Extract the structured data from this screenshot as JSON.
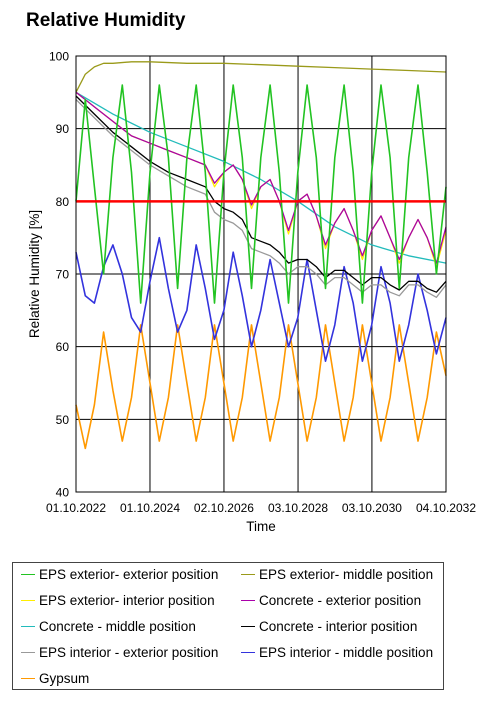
{
  "chart_data": {
    "type": "line",
    "title": "Relative Humidity",
    "xlabel": "Time",
    "ylabel": "Relative Humidity [%]",
    "ylim": [
      40,
      100
    ],
    "yticks": [
      40,
      50,
      60,
      70,
      80,
      90,
      100
    ],
    "xlim": [
      "2022-10-01",
      "2032-10-04"
    ],
    "xticks": [
      "2022-10-01",
      "2024-10-01",
      "2026-10-02",
      "2028-10-03",
      "2030-10-03",
      "2032-10-04"
    ],
    "xtick_labels": [
      "01.10.2022",
      "01.10.2024",
      "02.10.2026",
      "03.10.2028",
      "03.10.2030",
      "04.10.2032"
    ],
    "grid": true,
    "reference_line": {
      "y": 80,
      "color": "#ff0000"
    },
    "legend_position": "bottom",
    "series": [
      {
        "name": "EPS exterior- exterior position",
        "color": "#22c322",
        "x": [
          "2022-10-01",
          "2023-01-01",
          "2023-04-01",
          "2023-07-01",
          "2023-10-01",
          "2024-01-01",
          "2024-04-01",
          "2024-07-01",
          "2024-10-01",
          "2025-01-01",
          "2025-04-01",
          "2025-07-01",
          "2025-10-01",
          "2026-01-01",
          "2026-04-01",
          "2026-07-01",
          "2026-10-01",
          "2027-01-01",
          "2027-04-01",
          "2027-07-01",
          "2027-10-01",
          "2028-01-01",
          "2028-04-01",
          "2028-07-01",
          "2028-10-01",
          "2029-01-01",
          "2029-04-01",
          "2029-07-01",
          "2029-10-01",
          "2030-01-01",
          "2030-04-01",
          "2030-07-01",
          "2030-10-01",
          "2031-01-01",
          "2031-04-01",
          "2031-07-01",
          "2031-10-01",
          "2032-01-01",
          "2032-04-01",
          "2032-07-01",
          "2032-10-04"
        ],
        "y": [
          80,
          94,
          82,
          70,
          86,
          96,
          84,
          66,
          84,
          96,
          86,
          68,
          86,
          96,
          84,
          66,
          84,
          96,
          86,
          68,
          86,
          96,
          84,
          66,
          84,
          96,
          86,
          68,
          86,
          96,
          84,
          66,
          84,
          96,
          86,
          68,
          86,
          96,
          84,
          70,
          82
        ]
      },
      {
        "name": "EPS exterior- middle position",
        "color": "#9a9a1a",
        "x": [
          "2022-10-01",
          "2023-01-01",
          "2023-04-01",
          "2023-07-01",
          "2023-10-01",
          "2024-04-01",
          "2024-10-01",
          "2025-10-01",
          "2026-10-01",
          "2027-10-01",
          "2028-10-01",
          "2029-10-01",
          "2030-10-01",
          "2031-10-01",
          "2032-10-04"
        ],
        "y": [
          95,
          97.5,
          98.5,
          99,
          99,
          99.2,
          99.2,
          99,
          99,
          98.8,
          98.6,
          98.4,
          98.2,
          98,
          97.8
        ]
      },
      {
        "name": "EPS exterior- interior position",
        "color": "#ffee00",
        "x": [
          "2022-10-01",
          "2023-04-01",
          "2023-10-01",
          "2024-04-01",
          "2024-10-01",
          "2025-04-01",
          "2025-10-01",
          "2026-04-01",
          "2026-07-01",
          "2026-10-01",
          "2027-01-01",
          "2027-04-01",
          "2027-07-01",
          "2027-10-01",
          "2028-01-01",
          "2028-04-01",
          "2028-07-01",
          "2028-10-01",
          "2029-01-01",
          "2029-04-01",
          "2029-07-01",
          "2029-10-01",
          "2030-01-01",
          "2030-04-01",
          "2030-07-01",
          "2030-10-01",
          "2031-01-01",
          "2031-04-01",
          "2031-07-01",
          "2031-10-01",
          "2032-01-01",
          "2032-04-01",
          "2032-07-01",
          "2032-10-04"
        ],
        "y": [
          95,
          93,
          91,
          89,
          88,
          87,
          86,
          85,
          82,
          84,
          85,
          83,
          79,
          82,
          83,
          80,
          75.5,
          80,
          81,
          78,
          73.5,
          77,
          79,
          76,
          72,
          76,
          78,
          75,
          71.5,
          75,
          77.5,
          75,
          71,
          76
        ]
      },
      {
        "name": "Concrete - exterior position",
        "color": "#aa00aa",
        "x": [
          "2022-10-01",
          "2023-04-01",
          "2023-10-01",
          "2024-04-01",
          "2024-10-01",
          "2025-04-01",
          "2025-10-01",
          "2026-04-01",
          "2026-07-01",
          "2026-10-01",
          "2027-01-01",
          "2027-04-01",
          "2027-07-01",
          "2027-10-01",
          "2028-01-01",
          "2028-04-01",
          "2028-07-01",
          "2028-10-01",
          "2029-01-01",
          "2029-04-01",
          "2029-07-01",
          "2029-10-01",
          "2030-01-01",
          "2030-04-01",
          "2030-07-01",
          "2030-10-01",
          "2031-01-01",
          "2031-04-01",
          "2031-07-01",
          "2031-10-01",
          "2032-01-01",
          "2032-04-01",
          "2032-07-01",
          "2032-10-04"
        ],
        "y": [
          95,
          93,
          91,
          89,
          88,
          87,
          86,
          85,
          82.5,
          84,
          85,
          83,
          79.5,
          82,
          83,
          80,
          76,
          80,
          81,
          78,
          74,
          77,
          79,
          76,
          72.5,
          76,
          78,
          75,
          72,
          75,
          77.5,
          75,
          71.5,
          76.5
        ]
      },
      {
        "name": "Concrete - middle position",
        "color": "#22bbbb",
        "x": [
          "2022-10-01",
          "2023-10-01",
          "2024-10-01",
          "2025-10-01",
          "2026-10-01",
          "2027-10-01",
          "2028-10-01",
          "2029-10-01",
          "2030-10-01",
          "2031-10-01",
          "2032-10-04"
        ],
        "y": [
          95,
          92,
          89.5,
          87.5,
          85.5,
          83,
          80,
          76.5,
          74,
          72.5,
          71.5
        ]
      },
      {
        "name": "Concrete - interior position",
        "color": "#000000",
        "x": [
          "2022-10-01",
          "2023-04-01",
          "2023-10-01",
          "2024-04-01",
          "2024-10-01",
          "2025-04-01",
          "2025-10-01",
          "2026-04-01",
          "2026-07-01",
          "2026-10-01",
          "2027-01-01",
          "2027-04-01",
          "2027-07-01",
          "2027-10-01",
          "2028-01-01",
          "2028-04-01",
          "2028-07-01",
          "2028-10-01",
          "2029-01-01",
          "2029-04-01",
          "2029-07-01",
          "2029-10-01",
          "2030-01-01",
          "2030-04-01",
          "2030-07-01",
          "2030-10-01",
          "2031-01-01",
          "2031-04-01",
          "2031-07-01",
          "2031-10-01",
          "2032-01-01",
          "2032-04-01",
          "2032-07-01",
          "2032-10-04"
        ],
        "y": [
          94.5,
          92,
          89.5,
          87.5,
          85.5,
          84,
          83,
          82,
          80,
          79,
          78.5,
          77.5,
          75,
          74.5,
          74,
          73,
          71.5,
          72,
          72,
          71,
          69.5,
          70.5,
          70.5,
          69.5,
          68.5,
          69.5,
          69.5,
          68.5,
          67.8,
          69,
          69,
          68,
          67.5,
          69
        ]
      },
      {
        "name": "EPS interior - exterior position",
        "color": "#999999",
        "x": [
          "2022-10-01",
          "2023-04-01",
          "2023-10-01",
          "2024-04-01",
          "2024-10-01",
          "2025-04-01",
          "2025-10-01",
          "2026-04-01",
          "2026-07-01",
          "2026-10-01",
          "2027-01-01",
          "2027-04-01",
          "2027-07-01",
          "2027-10-01",
          "2028-01-01",
          "2028-04-01",
          "2028-07-01",
          "2028-10-01",
          "2029-01-01",
          "2029-04-01",
          "2029-07-01",
          "2029-10-01",
          "2030-01-01",
          "2030-04-01",
          "2030-07-01",
          "2030-10-01",
          "2031-01-01",
          "2031-04-01",
          "2031-07-01",
          "2031-10-01",
          "2032-01-01",
          "2032-04-01",
          "2032-07-01",
          "2032-10-04"
        ],
        "y": [
          94,
          91.5,
          89,
          87,
          85,
          83.5,
          82,
          81,
          78.5,
          77.5,
          77,
          76,
          73.5,
          73,
          72.5,
          71.5,
          70,
          71,
          71,
          70,
          68.5,
          69.5,
          69.5,
          68.5,
          67.5,
          68.5,
          68.5,
          67.5,
          67,
          68.5,
          68.5,
          67.5,
          66.8,
          68.5
        ]
      },
      {
        "name": "EPS interior - middle position",
        "color": "#3333dd",
        "x": [
          "2022-10-01",
          "2023-01-01",
          "2023-04-01",
          "2023-07-01",
          "2023-10-01",
          "2024-01-01",
          "2024-04-01",
          "2024-07-01",
          "2024-10-01",
          "2025-01-01",
          "2025-04-01",
          "2025-07-01",
          "2025-10-01",
          "2026-01-01",
          "2026-04-01",
          "2026-07-01",
          "2026-10-01",
          "2027-01-01",
          "2027-04-01",
          "2027-07-01",
          "2027-10-01",
          "2028-01-01",
          "2028-04-01",
          "2028-07-01",
          "2028-10-01",
          "2029-01-01",
          "2029-04-01",
          "2029-07-01",
          "2029-10-01",
          "2030-01-01",
          "2030-04-01",
          "2030-07-01",
          "2030-10-01",
          "2031-01-01",
          "2031-04-01",
          "2031-07-01",
          "2031-10-01",
          "2032-01-01",
          "2032-04-01",
          "2032-07-01",
          "2032-10-04"
        ],
        "y": [
          73,
          67,
          66,
          71,
          74,
          70,
          64,
          62,
          69,
          75,
          68,
          62,
          65,
          74,
          68,
          61,
          65,
          73,
          67,
          60,
          65,
          72,
          66,
          60,
          64,
          72,
          65,
          58,
          63,
          71,
          66,
          58,
          63,
          71,
          66,
          58,
          63,
          70,
          65,
          59,
          64
        ]
      },
      {
        "name": "Gypsum",
        "color": "#ff9900",
        "x": [
          "2022-10-01",
          "2023-01-01",
          "2023-04-01",
          "2023-07-01",
          "2023-10-01",
          "2024-01-01",
          "2024-04-01",
          "2024-07-01",
          "2024-10-01",
          "2025-01-01",
          "2025-04-01",
          "2025-07-01",
          "2025-10-01",
          "2026-01-01",
          "2026-04-01",
          "2026-07-01",
          "2026-10-01",
          "2027-01-01",
          "2027-04-01",
          "2027-07-01",
          "2027-10-01",
          "2028-01-01",
          "2028-04-01",
          "2028-07-01",
          "2028-10-01",
          "2029-01-01",
          "2029-04-01",
          "2029-07-01",
          "2029-10-01",
          "2030-01-01",
          "2030-04-01",
          "2030-07-01",
          "2030-10-01",
          "2031-01-01",
          "2031-04-01",
          "2031-07-01",
          "2031-10-01",
          "2032-01-01",
          "2032-04-01",
          "2032-07-01",
          "2032-10-04"
        ],
        "y": [
          52,
          46,
          52,
          62,
          54,
          47,
          53,
          63,
          55,
          47,
          53,
          63,
          55,
          47,
          53,
          63,
          55,
          47,
          53,
          63,
          55,
          47,
          53,
          63,
          55,
          47,
          53,
          63,
          55,
          47,
          53,
          63,
          55,
          47,
          53,
          63,
          55,
          47,
          53,
          62,
          56
        ]
      }
    ]
  }
}
